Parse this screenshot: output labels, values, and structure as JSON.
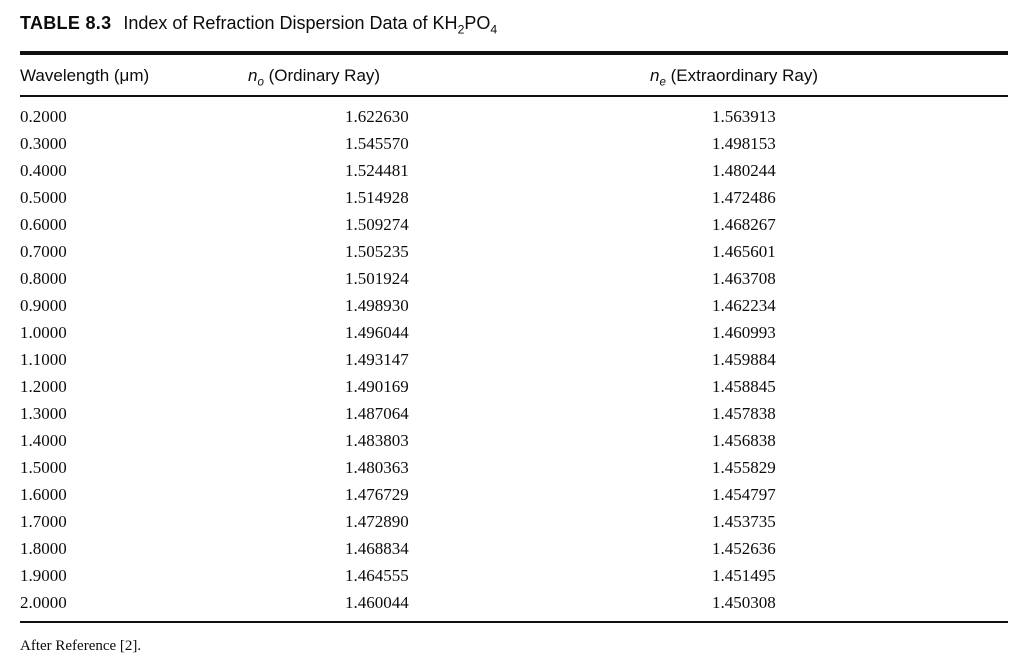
{
  "caption": {
    "label": "TABLE 8.3",
    "title": "Index of Refraction Dispersion Data of ",
    "formula": {
      "p1": "KH",
      "s1": "2",
      "p2": "PO",
      "s2": "4"
    }
  },
  "columns": [
    {
      "label": "Wavelength (μm)"
    },
    {
      "symbol": "n",
      "sub": "o",
      "rest": " (Ordinary Ray)"
    },
    {
      "symbol": "n",
      "sub": "e",
      "rest": " (Extraordinary Ray)"
    }
  ],
  "rows": [
    [
      "0.2000",
      "1.622630",
      "1.563913"
    ],
    [
      "0.3000",
      "1.545570",
      "1.498153"
    ],
    [
      "0.4000",
      "1.524481",
      "1.480244"
    ],
    [
      "0.5000",
      "1.514928",
      "1.472486"
    ],
    [
      "0.6000",
      "1.509274",
      "1.468267"
    ],
    [
      "0.7000",
      "1.505235",
      "1.465601"
    ],
    [
      "0.8000",
      "1.501924",
      "1.463708"
    ],
    [
      "0.9000",
      "1.498930",
      "1.462234"
    ],
    [
      "1.0000",
      "1.496044",
      "1.460993"
    ],
    [
      "1.1000",
      "1.493147",
      "1.459884"
    ],
    [
      "1.2000",
      "1.490169",
      "1.458845"
    ],
    [
      "1.3000",
      "1.487064",
      "1.457838"
    ],
    [
      "1.4000",
      "1.483803",
      "1.456838"
    ],
    [
      "1.5000",
      "1.480363",
      "1.455829"
    ],
    [
      "1.6000",
      "1.476729",
      "1.454797"
    ],
    [
      "1.7000",
      "1.472890",
      "1.453735"
    ],
    [
      "1.8000",
      "1.468834",
      "1.452636"
    ],
    [
      "1.9000",
      "1.464555",
      "1.451495"
    ],
    [
      "2.0000",
      "1.460044",
      "1.450308"
    ]
  ],
  "footnote": "After Reference [2]."
}
